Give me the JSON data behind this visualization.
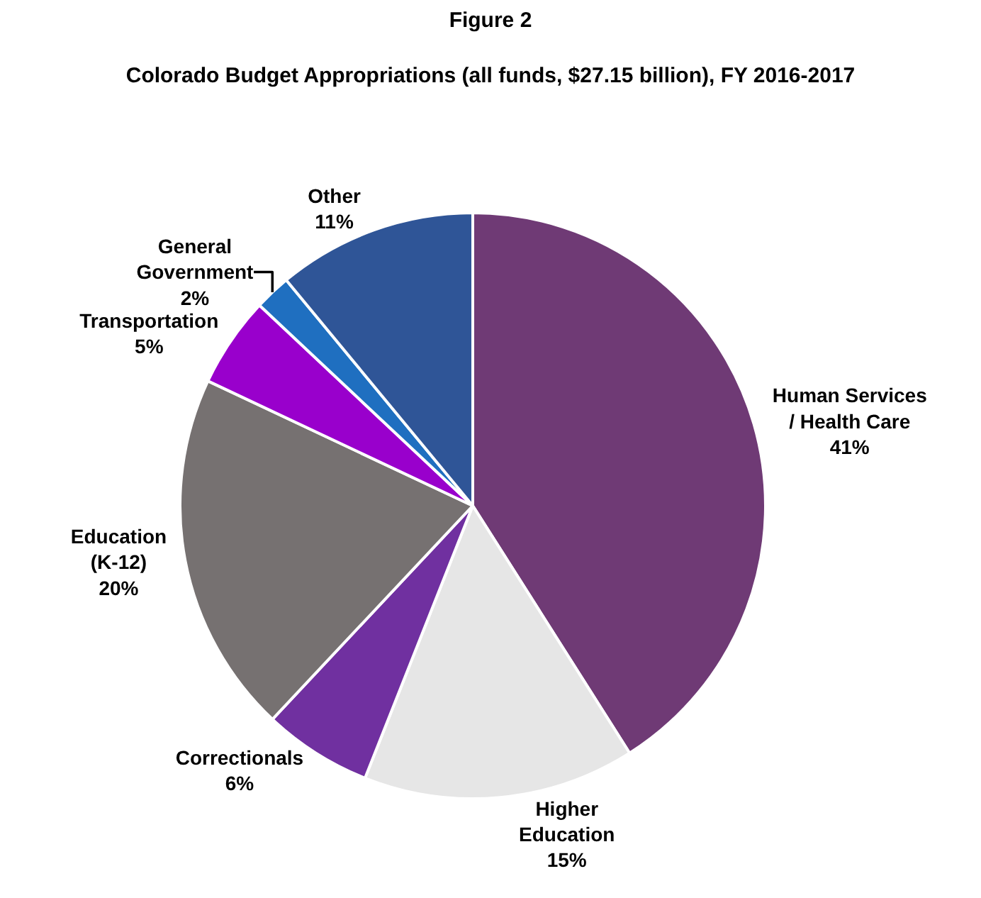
{
  "chart_data": {
    "type": "pie",
    "title": "Figure 2",
    "subtitle": "Colorado Budget Appropriations (all funds, $27.15 billion), FY 2016-2017",
    "categories": [
      "Human Services / Health Care",
      "Higher Education",
      "Correctionals",
      "Education (K-12)",
      "Transportation",
      "General Government",
      "Other"
    ],
    "values": [
      41,
      15,
      6,
      20,
      5,
      2,
      11
    ],
    "value_labels": [
      "41%",
      "15%",
      "6%",
      "20%",
      "5%",
      "2%",
      "11%"
    ],
    "colors": [
      "#6f3a75",
      "#e6e6e6",
      "#7030a0",
      "#767171",
      "#9900cc",
      "#1f6fc0",
      "#2f5597"
    ],
    "legend": false
  }
}
